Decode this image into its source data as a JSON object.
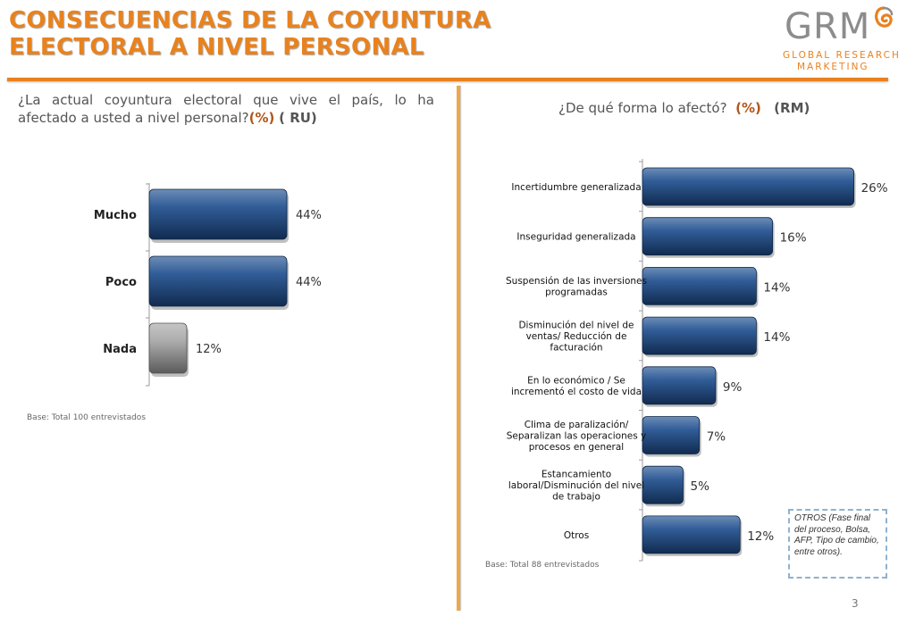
{
  "slide": {
    "title_line1": "CONSECUENCIAS DE LA COYUNTURA",
    "title_line2": "ELECTORAL A NIVEL PERSONAL",
    "page_number": "3"
  },
  "logo": {
    "brand": "GRM",
    "line1": "GLOBAL RESEARCH",
    "line2": "MARKETING"
  },
  "left_panel": {
    "question_text": "¿La actual coyuntura electoral que vive el país, lo ha afectado a usted a nivel personal?",
    "question_unit": "(%)",
    "question_type": "( RU)",
    "base_note": "Base: Total  100 entrevistados"
  },
  "right_panel": {
    "question_text": "¿De qué forma lo afectó?",
    "question_unit": "(%)",
    "question_type": "(RM)",
    "base_note": "Base: Total  88 entrevistados",
    "callout": "OTROS (Fase final del proceso, Bolsa, AFP, Tipo de cambio, entre otros)."
  },
  "colors": {
    "accent": "#e8821e",
    "bar_blue": "#1f4f8f",
    "bar_gray": "#a6a6a6"
  },
  "chart_data": [
    {
      "type": "bar",
      "orientation": "horizontal",
      "categories": [
        "Mucho",
        "Poco",
        "Nada"
      ],
      "values": [
        44,
        44,
        12
      ],
      "value_suffix": "%",
      "bar_colors": [
        "#1f4f8f",
        "#1f4f8f",
        "#a6a6a6"
      ],
      "xlim": [
        0,
        100
      ],
      "grid": false
    },
    {
      "type": "bar",
      "orientation": "horizontal",
      "categories": [
        [
          "Incertidumbre generalizada"
        ],
        [
          "Inseguridad generalizada"
        ],
        [
          "Suspensión de las inversiones",
          "programadas"
        ],
        [
          "Disminución del nivel de",
          "ventas/ Reducción de",
          "facturación"
        ],
        [
          "En lo económico  / Se",
          "incrementó el costo de vida"
        ],
        [
          "Clima de paralización/",
          "Separalizan las operaciones y",
          "procesos en general"
        ],
        [
          "Estancamiento",
          "laboral/Disminución del nivel",
          "de trabajo"
        ],
        [
          "Otros"
        ]
      ],
      "values": [
        26,
        16,
        14,
        14,
        9,
        7,
        5,
        12
      ],
      "value_suffix": "%",
      "bar_colors": [
        "#1f4f8f"
      ],
      "xlim": [
        0,
        30
      ],
      "grid": false
    }
  ]
}
